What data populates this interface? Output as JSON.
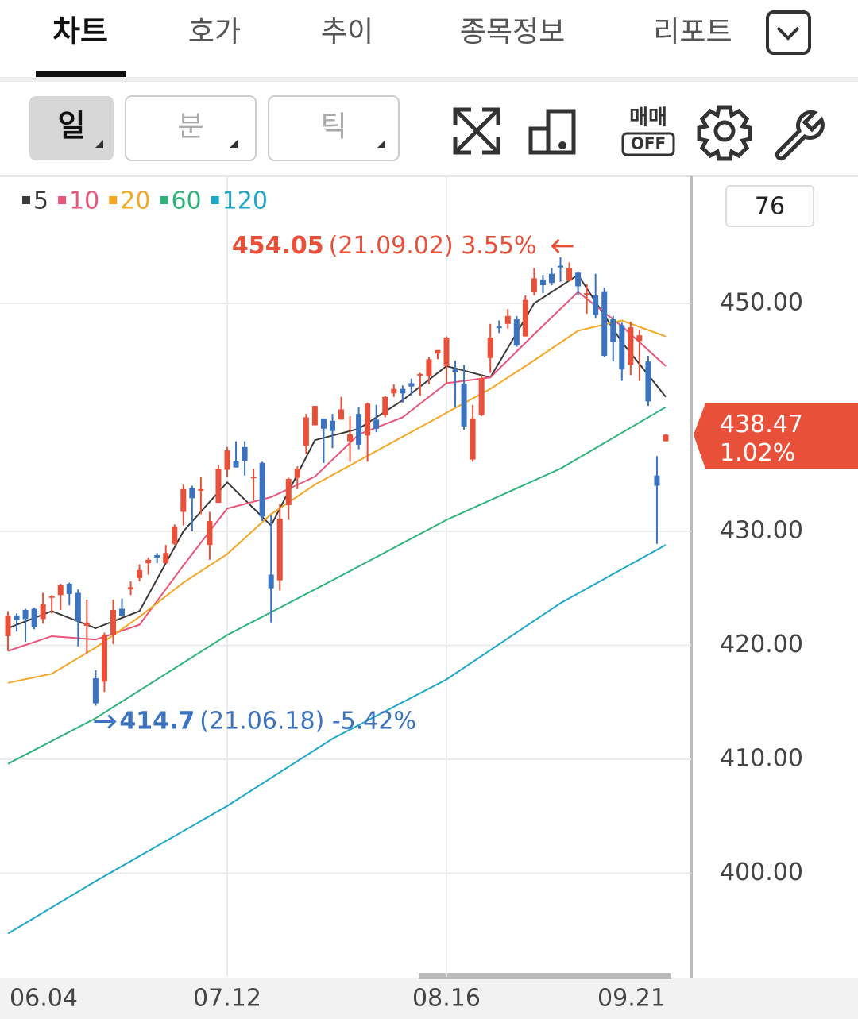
{
  "tabs": [
    "차트",
    "호가",
    "추이",
    "종목정보",
    "리포트"
  ],
  "periods": [
    "일",
    "분",
    "틱"
  ],
  "toolbar": {
    "trade": "매매",
    "off": "OFF"
  },
  "counter": 76,
  "chart_data": {
    "type": "candlestick",
    "categories": [
      "06.04",
      null,
      null,
      null,
      null,
      null,
      null,
      null,
      null,
      null,
      null,
      null,
      null,
      null,
      null,
      null,
      null,
      null,
      null,
      null,
      null,
      null,
      null,
      null,
      null,
      "07.12",
      null,
      null,
      null,
      null,
      null,
      null,
      null,
      null,
      null,
      null,
      null,
      null,
      null,
      null,
      null,
      null,
      null,
      null,
      null,
      null,
      null,
      null,
      null,
      null,
      "08.16",
      null,
      null,
      null,
      null,
      null,
      null,
      null,
      null,
      null,
      null,
      null,
      null,
      null,
      null,
      null,
      null,
      null,
      null,
      null,
      null,
      null,
      null,
      null,
      null,
      "09.21"
    ],
    "open": [
      420.8,
      422.6,
      423.1,
      423.2,
      422.3,
      424.2,
      424.4,
      425.4,
      424.6,
      421.7,
      417.1,
      416.8,
      420.9,
      423.2,
      424.9,
      425.9,
      427.2,
      427.9,
      427.2,
      428.9,
      431.7,
      433.8,
      433.7,
      428.8,
      432.5,
      435.4,
      436.2,
      437.4,
      434.8,
      436.0,
      426.2,
      425.7,
      432.3,
      434.7,
      437.5,
      439.3,
      439.9,
      439.7,
      439.8,
      437.9,
      440.3,
      438.4,
      439.8,
      440.2,
      442.1,
      442.5,
      443.0,
      443.8,
      443.6,
      445.6,
      444.5,
      444.2,
      442.96,
      436.3,
      440.2,
      445.2,
      447.97,
      448.2,
      448.6,
      447.1,
      450.97,
      452.1,
      452.6,
      453.3,
      452.0,
      452.7,
      450.9,
      450.7,
      451.0,
      448.6,
      448.1,
      444.6,
      446.7,
      444.9,
      434.9,
      437.9
    ],
    "high": [
      423.0,
      422.8,
      423.2,
      423.3,
      424.6,
      424.4,
      425.4,
      425.5,
      424.9,
      424.0,
      417.8,
      421.1,
      424.0,
      424.1,
      425.6,
      427.1,
      427.7,
      428.1,
      428.8,
      430.6,
      434.1,
      434.0,
      434.8,
      431.7,
      435.8,
      437.4,
      437.9,
      437.9,
      435.5,
      436.1,
      431.4,
      432.4,
      434.7,
      435.7,
      440.3,
      441.0,
      439.9,
      440.3,
      441.8,
      440.1,
      440.9,
      441.3,
      441.1,
      441.9,
      442.9,
      442.8,
      443.4,
      443.9,
      445.3,
      445.9,
      447.1,
      444.96,
      444.6,
      441.1,
      443.7,
      448.2,
      448.5,
      449.5,
      448.9,
      450.7,
      453.1,
      452.5,
      453.1,
      454.05,
      453.6,
      452.8,
      451.7,
      452.6,
      451.4,
      448.9,
      448.3,
      448.4,
      447.7,
      445.4,
      436.6,
      438.5
    ],
    "low": [
      419.5,
      421.2,
      420.3,
      421.4,
      421.9,
      422.8,
      423.1,
      423.5,
      419.9,
      419.3,
      414.7,
      415.9,
      420.1,
      422.5,
      424.4,
      425.6,
      426.2,
      427.2,
      427.2,
      428.8,
      430.5,
      430.0,
      431.5,
      427.5,
      432.5,
      434.8,
      435.6,
      434.9,
      432.7,
      430.9,
      422.0,
      424.8,
      431.0,
      433.7,
      436.8,
      439.3,
      435.99,
      437.3,
      439.8,
      436.1,
      437.2,
      436.1,
      438.7,
      440.0,
      441.8,
      441.3,
      441.9,
      441.9,
      442.9,
      445.1,
      442.9,
      440.9,
      438.9,
      436.1,
      440.1,
      443.9,
      447.4,
      447.8,
      446.2,
      447.1,
      450.7,
      450.9,
      451.6,
      451.9,
      451.9,
      450.7,
      449.1,
      448.7,
      445.3,
      444.9,
      443.2,
      443.7,
      443.2,
      441.0,
      428.9,
      437.9
    ],
    "close": [
      422.6,
      422.2,
      422.3,
      421.6,
      423.6,
      424.3,
      425.3,
      424.5,
      422.1,
      422.0,
      414.9,
      420.9,
      423.1,
      422.6,
      425.1,
      426.6,
      427.5,
      427.7,
      428.1,
      430.4,
      433.7,
      432.9,
      433.7,
      430.9,
      435.5,
      437.1,
      435.6,
      436.2,
      434.8,
      431.3,
      425.0,
      431.1,
      434.6,
      435.5,
      440.0,
      441.0,
      439.0,
      438.8,
      440.7,
      438.5,
      437.6,
      441.2,
      439.0,
      441.8,
      442.5,
      442.1,
      442.7,
      443.8,
      445.1,
      445.9,
      447.0,
      444.0,
      439.2,
      439.9,
      443.4,
      447.0,
      447.9,
      448.9,
      446.3,
      450.3,
      452.2,
      451.6,
      451.8,
      453.2,
      453.1,
      451.5,
      450.9,
      449.0,
      445.4,
      446.6,
      444.2,
      447.9,
      447.2,
      441.4,
      434.0,
      438.47
    ],
    "up_color": "#e8503a",
    "down_color": "#3b73c0",
    "series": [
      {
        "name": "5",
        "color": "#3a3a3a",
        "x": [
          0,
          5,
          10,
          15,
          20,
          25,
          30,
          35,
          40,
          45,
          50,
          55,
          60,
          65,
          70,
          75
        ],
        "values": [
          421.5,
          423.0,
          421.5,
          423.0,
          430.0,
          434.3,
          430.5,
          438.0,
          439.0,
          441.5,
          444.5,
          443.5,
          450.0,
          452.5,
          446.6,
          441.8
        ]
      },
      {
        "name": "10",
        "color": "#e8557a",
        "x": [
          0,
          5,
          10,
          15,
          20,
          25,
          30,
          35,
          40,
          45,
          50,
          55,
          60,
          65,
          70,
          75
        ],
        "values": [
          419.5,
          420.8,
          420.5,
          421.8,
          427.0,
          432.0,
          433.0,
          434.8,
          438.5,
          440.0,
          443.0,
          443.5,
          447.3,
          451.0,
          448.0,
          444.5
        ]
      },
      {
        "name": "20",
        "color": "#f5a623",
        "x": [
          0,
          5,
          10,
          15,
          20,
          25,
          30,
          35,
          40,
          45,
          50,
          55,
          60,
          65,
          70,
          75
        ],
        "values": [
          416.7,
          417.5,
          419.8,
          422.5,
          425.5,
          428.0,
          431.5,
          434.1,
          436.2,
          438.3,
          440.4,
          442.5,
          445.0,
          447.6,
          448.5,
          447.1
        ]
      },
      {
        "name": "60",
        "color": "#2fb37a",
        "x": [
          0,
          10,
          25,
          37,
          50,
          63,
          75
        ],
        "values": [
          409.6,
          413.6,
          420.9,
          425.7,
          431.0,
          435.5,
          440.9
        ]
      },
      {
        "name": "120",
        "color": "#1ea7c9",
        "x": [
          0,
          10,
          25,
          37,
          50,
          63,
          75
        ],
        "values": [
          394.7,
          399.3,
          405.9,
          411.8,
          417.0,
          423.7,
          428.8
        ]
      }
    ],
    "ylim": [
      390.9,
      461.15
    ],
    "yticks": [
      {
        "value": 400,
        "label": "400.00"
      },
      {
        "value": 410,
        "label": "410.00"
      },
      {
        "value": 420,
        "label": "420.00"
      },
      {
        "value": 430,
        "label": "430.00"
      },
      {
        "value": 450,
        "label": "450.00"
      }
    ],
    "grid": true,
    "max_annotation": {
      "index": 63,
      "value": 454.05,
      "detail": "(21.09.02) 3.55%"
    },
    "min_annotation": {
      "index": 10,
      "value": 414.7,
      "detail": "(21.06.18) -5.42%"
    },
    "last_price": {
      "value": 438.47,
      "change": "1.02%"
    }
  }
}
